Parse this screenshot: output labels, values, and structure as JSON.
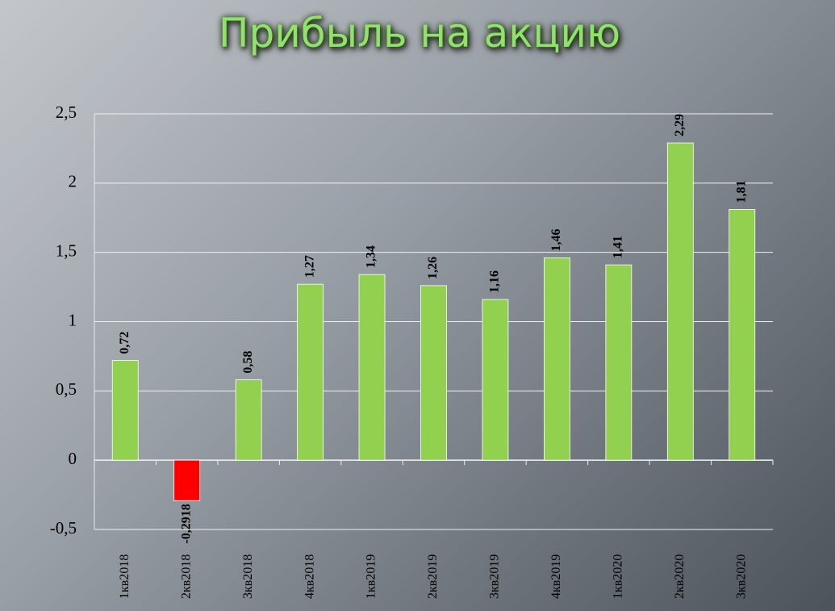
{
  "chart_data": {
    "type": "bar",
    "title": "Прибыль на акцию",
    "categories": [
      "1кв2018",
      "2кв2018",
      "3кв2018",
      "4кв2018",
      "1кв2019",
      "2кв2019",
      "3кв2019",
      "4кв2019",
      "1кв2020",
      "2кв2020",
      "3кв2020"
    ],
    "values": [
      0.72,
      -0.2918,
      0.58,
      1.27,
      1.34,
      1.26,
      1.16,
      1.46,
      1.41,
      2.29,
      1.81
    ],
    "value_labels": [
      "0,72",
      "-0,2918",
      "0,58",
      "1,27",
      "1,34",
      "1,26",
      "1,16",
      "1,46",
      "1,41",
      "2,29",
      "1,81"
    ],
    "colors": [
      "#92d050",
      "#ff0000",
      "#92d050",
      "#92d050",
      "#92d050",
      "#92d050",
      "#92d050",
      "#92d050",
      "#92d050",
      "#92d050",
      "#92d050"
    ],
    "ylim": [
      -0.5,
      2.5
    ],
    "yticks": [
      {
        "value": -0.5,
        "label": "-0,5"
      },
      0,
      {
        "value": 0.5,
        "label": "0,5"
      },
      1,
      {
        "value": 1.5,
        "label": "1,5"
      },
      2,
      {
        "value": 2.5,
        "label": "2,5"
      }
    ],
    "grid": true
  }
}
